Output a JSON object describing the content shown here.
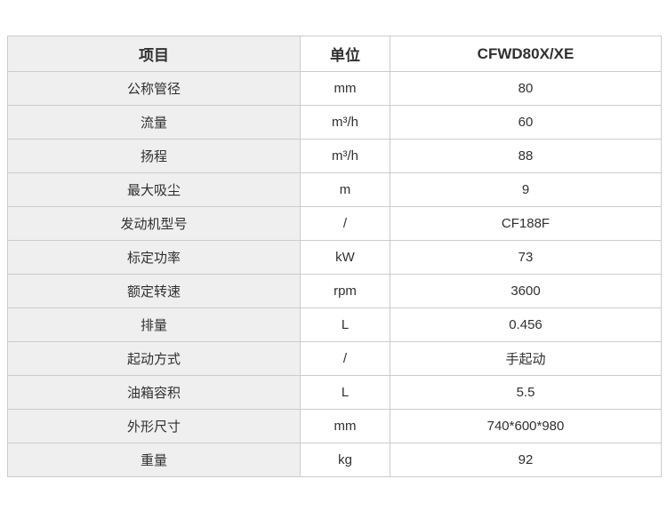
{
  "table": {
    "headers": {
      "item": "项目",
      "unit": "单位",
      "model": "CFWD80X/XE"
    },
    "rows": [
      {
        "item": "公称管径",
        "unit": "mm",
        "value": "80"
      },
      {
        "item": "流量",
        "unit": "m³/h",
        "value": "60"
      },
      {
        "item": "扬程",
        "unit": "m³/h",
        "value": "88"
      },
      {
        "item": "最大吸尘",
        "unit": "m",
        "value": "9"
      },
      {
        "item": "发动机型号",
        "unit": "/",
        "value": "CF188F"
      },
      {
        "item": "标定功率",
        "unit": "kW",
        "value": "73"
      },
      {
        "item": "额定转速",
        "unit": "rpm",
        "value": "3600"
      },
      {
        "item": "排量",
        "unit": "L",
        "value": "0.456"
      },
      {
        "item": "起动方式",
        "unit": "/",
        "value": "手起动"
      },
      {
        "item": "油箱容积",
        "unit": "L",
        "value": "5.5"
      },
      {
        "item": "外形尺寸",
        "unit": "mm",
        "value": "740*600*980"
      },
      {
        "item": "重量",
        "unit": "kg",
        "value": "92"
      }
    ],
    "colors": {
      "item_column_bg": "#efefef",
      "inner_border": "#cccccc",
      "outer_border": "#b3b3b3",
      "text": "#303030"
    }
  }
}
